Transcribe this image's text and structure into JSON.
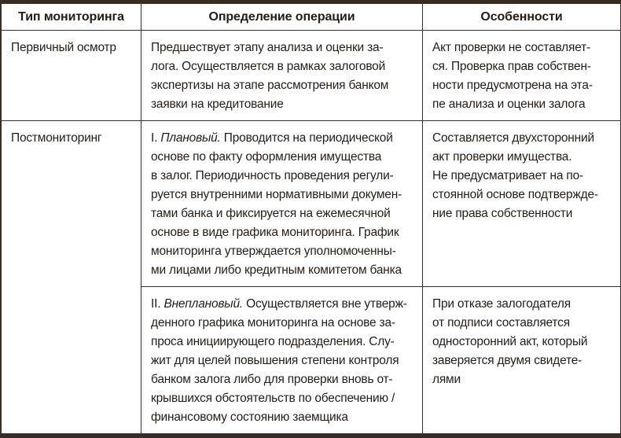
{
  "table": {
    "headers": {
      "type": "Тип мониторинга",
      "definition": "Определение операции",
      "features": "Особенности"
    },
    "primary_inspection": {
      "type": "Первичный осмотр",
      "definition": "Предшествует этапу анализа и оценки за-\nлога. Осуществляется в рамках залоговой\nэкспертизы на этапе рассмотрения банком\nзаявки на кредитование",
      "features": "Акт проверки не составляет-\nся. Проверка прав собствен-\nности предусмотрена на эта-\nпе анализа и оценки залога"
    },
    "postmonitoring": {
      "type": "Постмониторинг",
      "planned": {
        "numeral": "I. ",
        "term": "Плановый.",
        "definition_rest": " Проводится на периодической\nоснове по факту оформления имущества\nв залог. Периодичность проведения регули-\nруется внутренними нормативными докумен-\nтами банка и фиксируется на ежемесячной\nоснове в виде графика мониторинга. График\nмониторинга утверждается уполномоченны-\nми лицами либо кредитным комитетом банка",
        "features": "Составляется двухсторонний\nакт проверки имущества.\nНе предусматривает на по-\nстоянной основе подтвержде-\nние права собственности"
      },
      "unplanned": {
        "numeral": "II. ",
        "term": "Внеплановый.",
        "definition_rest": " Осуществляется вне утверж-\nденного графика мониторинга на основе за-\nпроса инициирующего подразделения. Слу-\nжит для целей повышения степени контроля\nбанком залога либо для проверки вновь от-\nкрывшихся обстоятельств по обеспечению /\nфинансовому состоянию заемщика",
        "features": "При отказе залогодателя\nот подписи составляется\nодносторонний акт, который\nзаверяется двумя свидете-\nлями"
      }
    },
    "colors": {
      "border": "#3a2f27",
      "heavy_rule": "#362c24",
      "text": "#241d17",
      "background": "#ffffff"
    }
  }
}
